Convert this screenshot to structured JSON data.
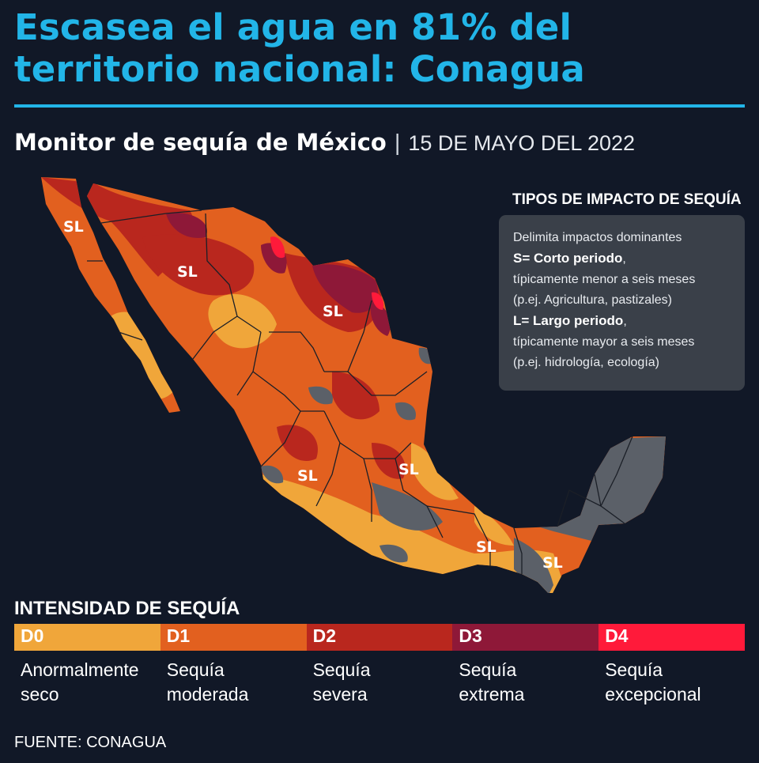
{
  "headline": {
    "line1": "Escasea el agua en 81% del",
    "line2": "territorio nacional: Conagua"
  },
  "subhead": {
    "title": "Monitor de sequía de México",
    "separator": "|",
    "date": "15 DE MAYO DEL 2022"
  },
  "map": {
    "labels": [
      "SL",
      "SL",
      "SL",
      "SL",
      "SL",
      "SL",
      "SL"
    ]
  },
  "impact_legend": {
    "title": "TIPOS DE IMPACTO DE SEQUÍA",
    "intro": "Delimita impactos dominantes",
    "short_label": "S= Corto periodo",
    "short_suffix": ",",
    "short_desc": "típicamente menor a seis meses",
    "short_examples": "(p.ej. Agricultura, pastizales)",
    "long_label": "L= Largo periodo",
    "long_suffix": ",",
    "long_desc": "típicamente mayor a seis meses",
    "long_examples": "(p.ej. hidrología, ecología)"
  },
  "intensity": {
    "title": "INTENSIDAD DE SEQUÍA",
    "levels": [
      {
        "code": "D0",
        "line1": "Anormalmente",
        "line2": "seco",
        "color": "#f0a63a"
      },
      {
        "code": "D1",
        "line1": "Sequía",
        "line2": "moderada",
        "color": "#e2601f"
      },
      {
        "code": "D2",
        "line1": "Sequía",
        "line2": "severa",
        "color": "#b9271e"
      },
      {
        "code": "D3",
        "line1": "Sequía",
        "line2": "extrema",
        "color": "#8e1838"
      },
      {
        "code": "D4",
        "line1": "Sequía",
        "line2": "excepcional",
        "color": "#ff1a3a"
      }
    ]
  },
  "no_drought_color": "#5b6068",
  "source": "FUENTE: CONAGUA"
}
